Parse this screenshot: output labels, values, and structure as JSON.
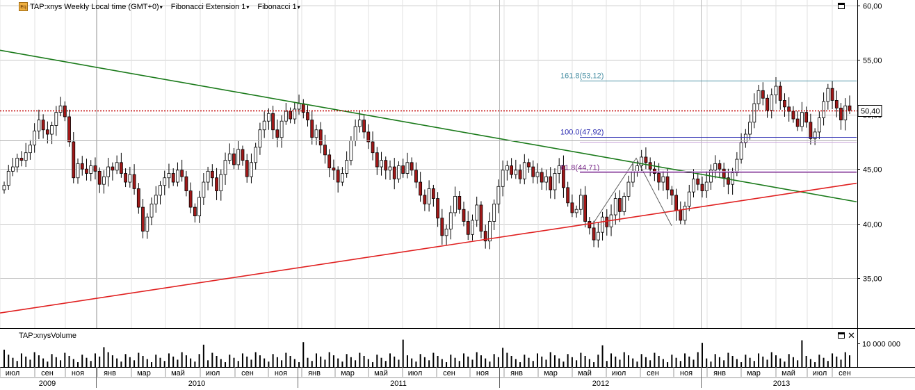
{
  "toolbar": {
    "symbol_title": "TAP:xnys Weekly Local time (GMT+0)",
    "indicator_1": "Fibonacci Extension 1",
    "indicator_2": "Fibonacci 1",
    "eq_badge": "Eq"
  },
  "volume_pane": {
    "title": "TAP:xnysVolume",
    "axis_label": "10 000 000"
  },
  "price_axis": {
    "ticks": [
      "60,00",
      "55,00",
      "50,00",
      "45,00",
      "40,00",
      "35,00"
    ]
  },
  "last_price_label": "50,40",
  "fib_levels": [
    {
      "label": "161.8(53,12)",
      "value": 53.12,
      "color": "#4a90a4"
    },
    {
      "label": "100.0(47,92)",
      "value": 47.92,
      "color": "#2a2ab0"
    },
    {
      "label": "61.8(44,71)",
      "value": 44.71,
      "color": "#7a2a8a"
    }
  ],
  "time_axis": {
    "months": [
      "июл",
      "сен",
      "ноя",
      "янв",
      "мар",
      "май",
      "июл",
      "сен",
      "ноя",
      "янв",
      "мар",
      "май",
      "июл",
      "сен",
      "ноя",
      "янв",
      "мар",
      "май",
      "июл",
      "сен",
      "ноя",
      "янв",
      "мар",
      "май",
      "июл",
      "сен"
    ],
    "years": [
      "2009",
      "2010",
      "2011",
      "2012",
      "2013"
    ]
  },
  "colors": {
    "up_candle": "#ffffff",
    "down_candle": "#a01818",
    "green_trend": "#1a7a1a",
    "red_trend": "#e02020",
    "last_price_line": "#c00000",
    "grid": "#c8c8c8"
  },
  "chart_data": {
    "type": "candlestick",
    "interval": "weekly",
    "ylim": [
      31,
      61
    ],
    "y_ticks": [
      35,
      40,
      45,
      50,
      55,
      60
    ],
    "last_price": 50.4,
    "trendlines": [
      {
        "name": "green-resistance",
        "start": [
          "2009-06",
          55.9
        ],
        "end": [
          "2013-09",
          42.0
        ]
      },
      {
        "name": "red-support",
        "start": [
          "2009-06",
          31.8
        ],
        "end": [
          "2013-09",
          43.7
        ]
      }
    ],
    "fibonacci": [
      {
        "level": 161.8,
        "price": 53.12
      },
      {
        "level": 100.0,
        "price": 47.92
      },
      {
        "level": 61.8,
        "price": 44.71
      }
    ],
    "series": [
      {
        "name": "TAP:xnys",
        "closes": [
          43.5,
          44.8,
          45.2,
          46.0,
          45.8,
          46.5,
          47.2,
          48.5,
          49.5,
          48.6,
          48.2,
          49.0,
          50.2,
          50.8,
          49.8,
          47.5,
          44.2,
          45.5,
          45.0,
          44.6,
          45.3,
          44.8,
          43.6,
          44.3,
          45.2,
          44.9,
          45.6,
          44.6,
          43.8,
          44.5,
          43.2,
          41.5,
          39.3,
          40.6,
          41.8,
          42.6,
          43.5,
          44.2,
          44.6,
          43.8,
          44.9,
          44.3,
          43.0,
          41.5,
          40.7,
          42.4,
          43.8,
          44.8,
          44.2,
          43.0,
          44.5,
          45.8,
          46.4,
          45.4,
          46.8,
          45.8,
          44.3,
          45.6,
          47.0,
          48.6,
          49.4,
          50.1,
          48.6,
          47.9,
          49.4,
          50.3,
          49.6,
          50.5,
          51.0,
          50.2,
          49.5,
          47.9,
          48.6,
          47.2,
          46.3,
          45.1,
          44.9,
          43.8,
          44.6,
          45.8,
          47.6,
          48.9,
          49.5,
          48.4,
          47.5,
          46.5,
          45.2,
          45.8,
          44.9,
          45.2,
          44.1,
          45.3,
          44.6,
          45.6,
          44.9,
          43.8,
          42.6,
          41.8,
          43.2,
          42.3,
          40.5,
          38.9,
          39.5,
          41.0,
          42.5,
          41.3,
          40.2,
          39.0,
          40.3,
          41.7,
          39.3,
          38.4,
          40.2,
          41.8,
          43.4,
          44.9,
          45.3,
          44.5,
          44.9,
          44.1,
          45.6,
          45.2,
          44.3,
          44.7,
          43.8,
          44.3,
          43.1,
          44.6,
          45.3,
          43.3,
          41.9,
          41.0,
          41.3,
          42.6,
          40.2,
          39.6,
          38.5,
          39.2,
          40.6,
          39.7,
          40.8,
          42.3,
          41.1,
          42.5,
          43.8,
          44.8,
          45.3,
          46.1,
          45.6,
          45.0,
          44.6,
          43.8,
          44.3,
          43.1,
          42.6,
          41.2,
          40.3,
          41.6,
          42.9,
          44.1,
          43.6,
          43.0,
          43.8,
          44.9,
          45.5,
          45.0,
          44.2,
          43.6,
          44.7,
          45.9,
          47.4,
          48.2,
          49.3,
          51.0,
          52.2,
          51.5,
          50.4,
          51.8,
          52.6,
          51.3,
          50.7,
          50.3,
          49.6,
          48.9,
          50.2,
          49.3,
          47.8,
          48.4,
          49.7,
          51.2,
          52.4,
          51.3,
          50.6,
          49.5,
          50.8,
          50.4
        ]
      }
    ],
    "volume_series": {
      "name": "TAP:xnysVolume",
      "tick": 10000000
    }
  }
}
